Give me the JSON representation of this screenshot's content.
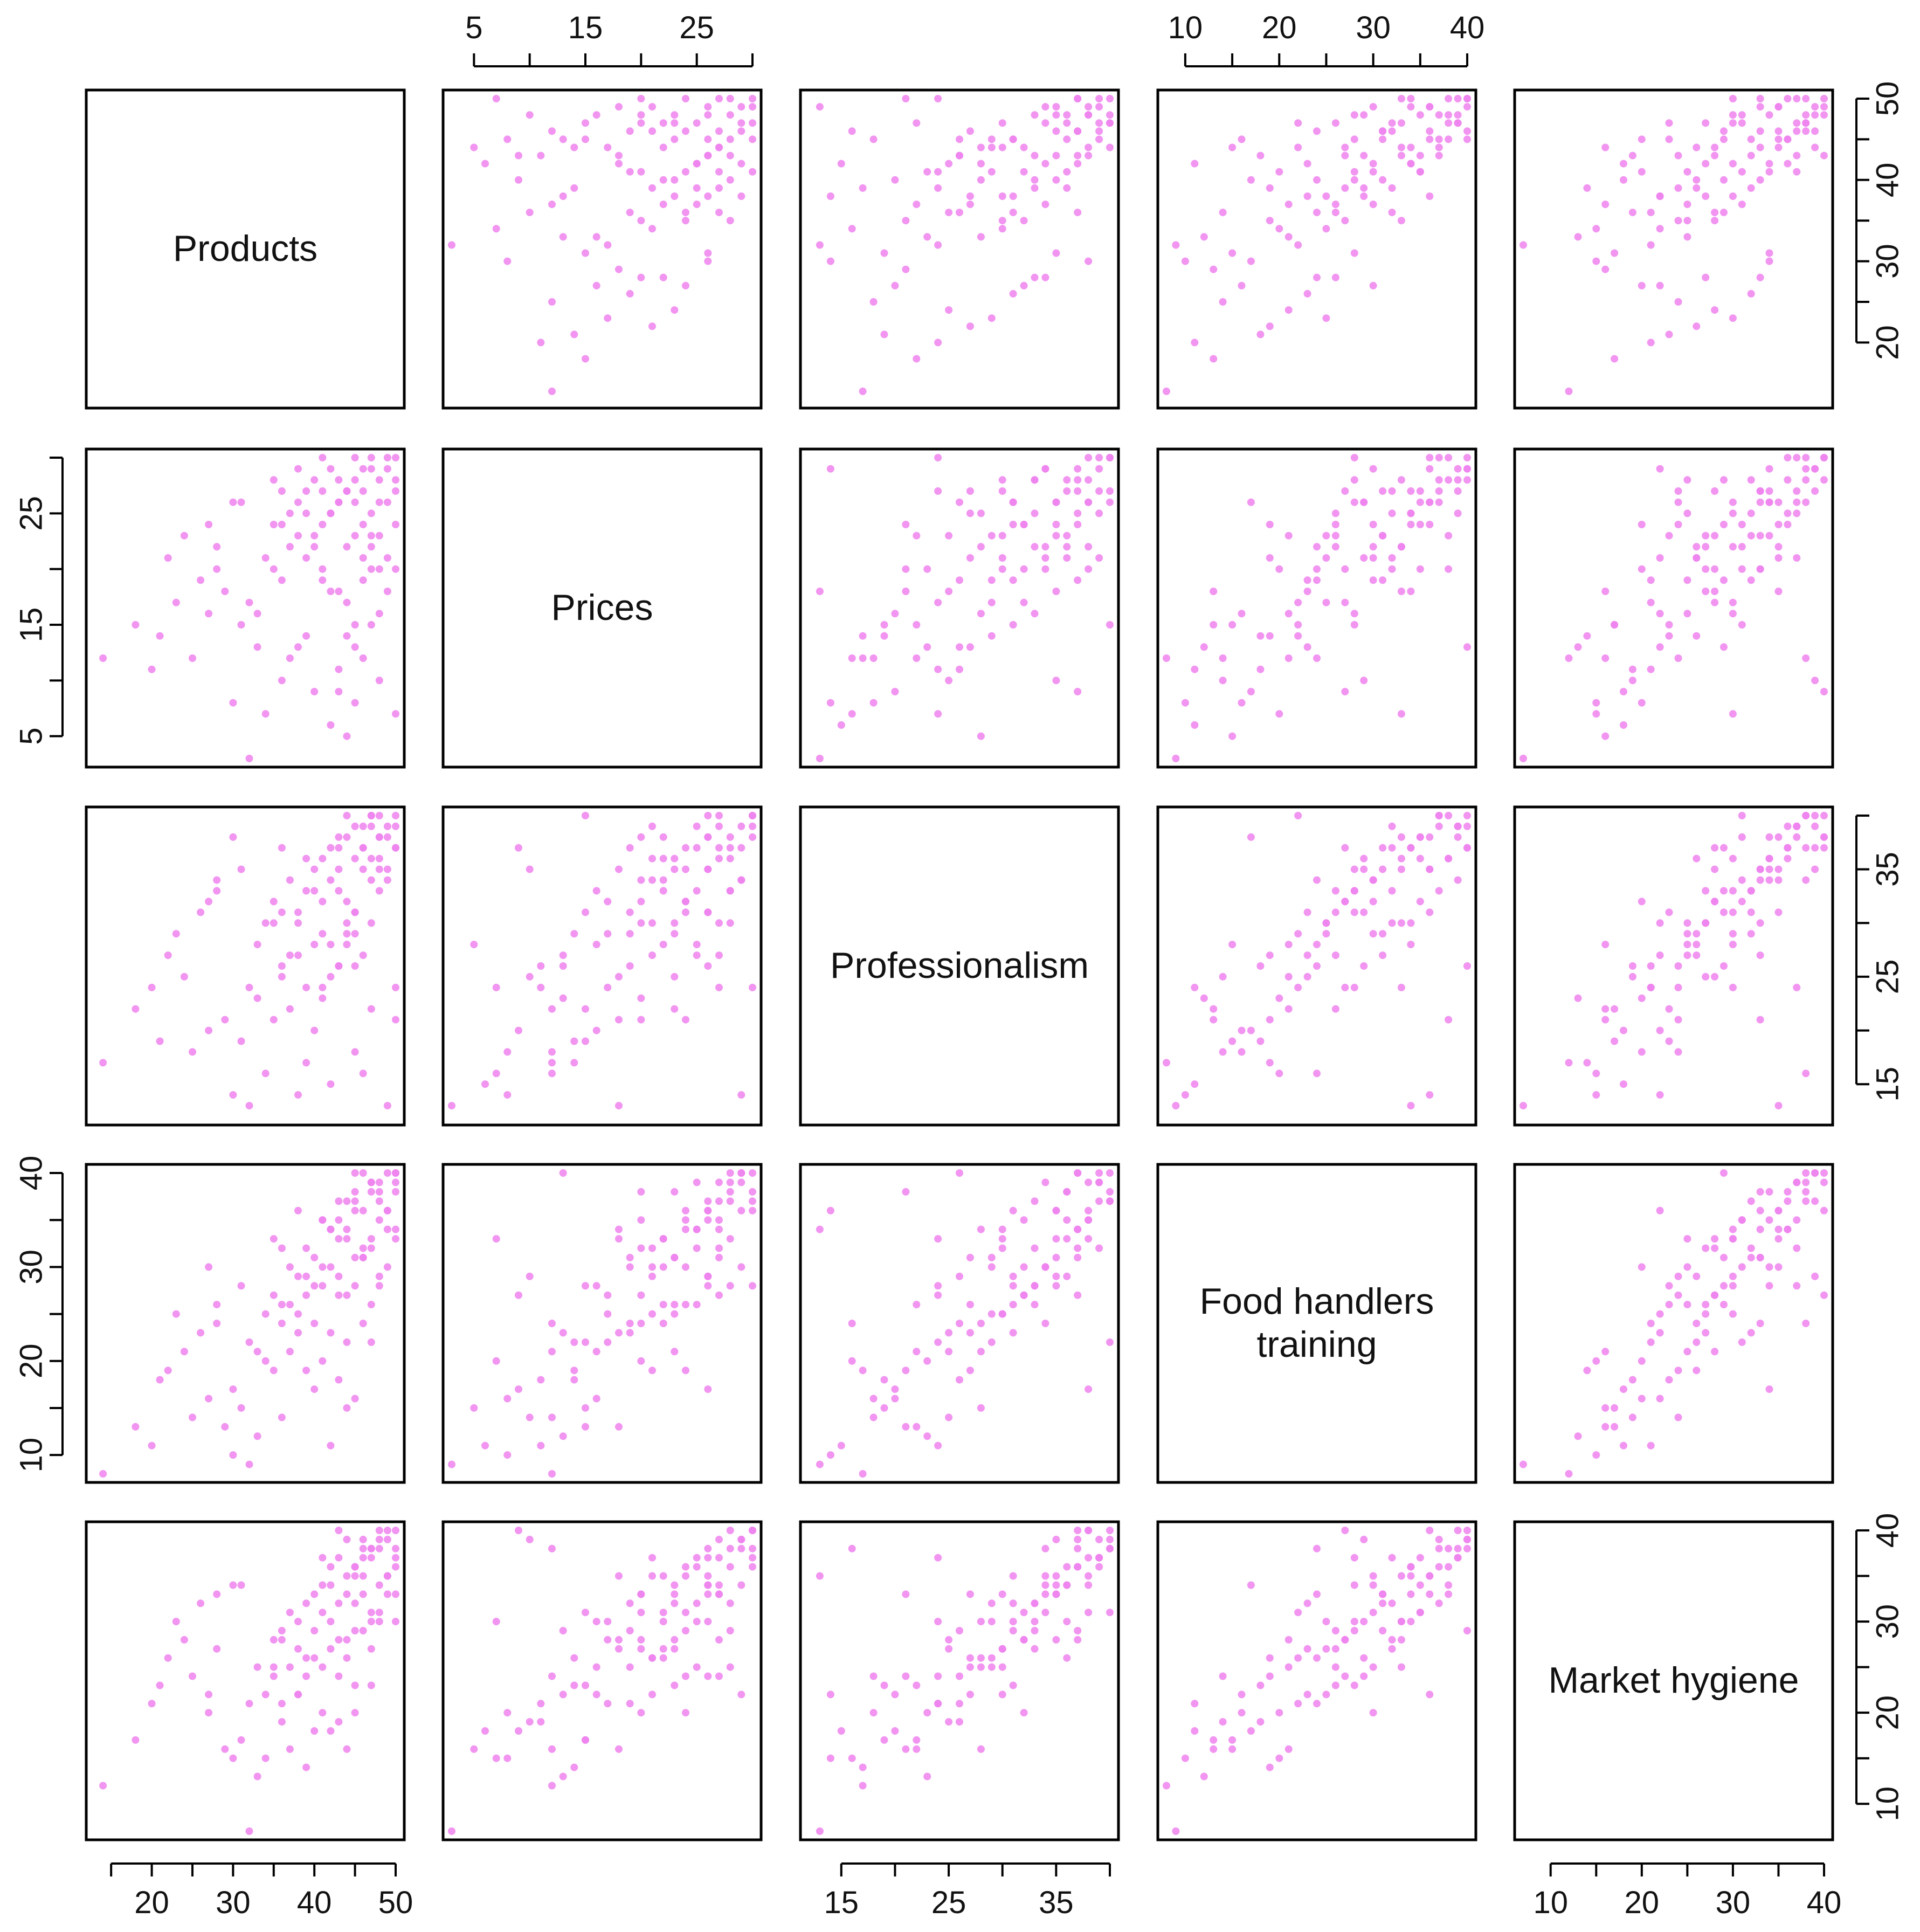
{
  "chart_data": {
    "type": "scatter",
    "subtype": "scatterplot-matrix",
    "point_color": "#ee82ee",
    "variables": [
      {
        "key": "products",
        "label": [
          "Products"
        ],
        "range": [
          13,
          50
        ]
      },
      {
        "key": "prices",
        "label": [
          "Prices"
        ],
        "range": [
          3,
          30
        ]
      },
      {
        "key": "professionalism",
        "label": [
          "Professionalism"
        ],
        "range": [
          12,
          40
        ]
      },
      {
        "key": "food_handlers_training",
        "label": [
          "Food handlers",
          "training"
        ],
        "range": [
          8,
          40
        ]
      },
      {
        "key": "market_hygiene",
        "label": [
          "Market hygiene"
        ],
        "range": [
          7,
          40
        ]
      }
    ],
    "axes": {
      "top": [
        {
          "column": 1,
          "ticks": [
            5,
            10,
            15,
            20,
            25,
            30
          ],
          "labels": [
            "5",
            "15",
            "25"
          ]
        },
        {
          "column": 3,
          "ticks": [
            10,
            15,
            20,
            25,
            30,
            35,
            40
          ],
          "labels": [
            "10",
            "20",
            "30",
            "40"
          ]
        }
      ],
      "bottom": [
        {
          "column": 0,
          "ticks": [
            15,
            20,
            25,
            30,
            35,
            40,
            45,
            50
          ],
          "labels": [
            "20",
            "30",
            "40",
            "50"
          ]
        },
        {
          "column": 2,
          "ticks": [
            15,
            20,
            25,
            30,
            35,
            40
          ],
          "labels": [
            "15",
            "25",
            "35"
          ]
        },
        {
          "column": 4,
          "ticks": [
            10,
            15,
            20,
            25,
            30,
            35,
            40
          ],
          "labels": [
            "10",
            "20",
            "30",
            "40"
          ]
        }
      ],
      "left": [
        {
          "row": 1,
          "ticks": [
            5,
            10,
            15,
            20,
            25,
            30
          ],
          "labels": [
            "5",
            "15",
            "25"
          ]
        },
        {
          "row": 3,
          "ticks": [
            10,
            15,
            20,
            25,
            30,
            35,
            40
          ],
          "labels": [
            "10",
            "20",
            "30",
            "40"
          ]
        }
      ],
      "right": [
        {
          "row": 0,
          "ticks": [
            20,
            25,
            30,
            35,
            40,
            45,
            50
          ],
          "labels": [
            "20",
            "30",
            "40",
            "50"
          ]
        },
        {
          "row": 2,
          "ticks": [
            15,
            20,
            25,
            30,
            35,
            40
          ],
          "labels": [
            "15",
            "25",
            "35"
          ]
        },
        {
          "row": 4,
          "ticks": [
            10,
            15,
            20,
            25,
            30,
            35,
            40
          ],
          "labels": [
            "10",
            "20",
            "30",
            "40"
          ]
        }
      ]
    },
    "sample_data": {
      "note": "approximate respondent scores read off the panels",
      "fields": [
        "products",
        "prices",
        "professionalism",
        "food_handlers_training",
        "market_hygiene"
      ],
      "records": [
        [
          50,
          30,
          40,
          40,
          40
        ],
        [
          49,
          29,
          39,
          40,
          39
        ],
        [
          48,
          28,
          38,
          39,
          40
        ],
        [
          47,
          30,
          40,
          38,
          38
        ],
        [
          50,
          27,
          39,
          39,
          37
        ],
        [
          46,
          29,
          37,
          40,
          39
        ],
        [
          48,
          26,
          40,
          37,
          38
        ],
        [
          45,
          28,
          36,
          38,
          36
        ],
        [
          49,
          30,
          38,
          36,
          40
        ],
        [
          47,
          25,
          39,
          39,
          37
        ],
        [
          44,
          27,
          40,
          37,
          39
        ],
        [
          46,
          24,
          35,
          36,
          35
        ],
        [
          50,
          28,
          37,
          40,
          38
        ],
        [
          43,
          26,
          38,
          35,
          37
        ],
        [
          45,
          30,
          39,
          37,
          36
        ],
        [
          48,
          23,
          36,
          38,
          34
        ],
        [
          42,
          25,
          37,
          34,
          36
        ],
        [
          47,
          29,
          34,
          39,
          38
        ],
        [
          44,
          22,
          38,
          33,
          35
        ],
        [
          49,
          26,
          35,
          36,
          33
        ],
        [
          41,
          27,
          36,
          35,
          34
        ],
        [
          46,
          21,
          39,
          32,
          37
        ],
        [
          43,
          28,
          33,
          37,
          32
        ],
        [
          50,
          24,
          37,
          34,
          36
        ],
        [
          40,
          23,
          35,
          31,
          33
        ],
        [
          45,
          26,
          31,
          36,
          35
        ],
        [
          48,
          20,
          38,
          35,
          31
        ],
        [
          42,
          29,
          34,
          30,
          34
        ],
        [
          47,
          22,
          36,
          33,
          30
        ],
        [
          39,
          25,
          33,
          32,
          32
        ],
        [
          44,
          27,
          30,
          34,
          33
        ],
        [
          46,
          19,
          37,
          31,
          29
        ],
        [
          41,
          24,
          32,
          35,
          31
        ],
        [
          49,
          21,
          34,
          30,
          35
        ],
        [
          38,
          26,
          31,
          29,
          30
        ],
        [
          43,
          18,
          35,
          33,
          28
        ],
        [
          45,
          23,
          29,
          31,
          32
        ],
        [
          40,
          28,
          33,
          28,
          29
        ],
        [
          47,
          20,
          30,
          32,
          27
        ],
        [
          37,
          22,
          34,
          30,
          31
        ],
        [
          42,
          25,
          28,
          34,
          30
        ],
        [
          44,
          17,
          32,
          27,
          28
        ],
        [
          39,
          21,
          36,
          29,
          26
        ],
        [
          46,
          27,
          27,
          31,
          33
        ],
        [
          36,
          24,
          31,
          26,
          29
        ],
        [
          41,
          19,
          29,
          30,
          25
        ],
        [
          48,
          16,
          33,
          28,
          30
        ],
        [
          38,
          23,
          30,
          25,
          27
        ],
        [
          43,
          26,
          26,
          29,
          24
        ],
        [
          35,
          20,
          32,
          27,
          28
        ],
        [
          40,
          22,
          28,
          24,
          26
        ],
        [
          45,
          15,
          31,
          28,
          23
        ],
        [
          37,
          25,
          27,
          26,
          25
        ],
        [
          42,
          18,
          25,
          23,
          27
        ],
        [
          34,
          21,
          30,
          25,
          22
        ],
        [
          39,
          27,
          24,
          27,
          24
        ],
        [
          44,
          14,
          29,
          22,
          26
        ],
        [
          36,
          19,
          26,
          24,
          21
        ],
        [
          47,
          23,
          22,
          26,
          23
        ],
        [
          33,
          16,
          28,
          21,
          25
        ],
        [
          41,
          20,
          23,
          20,
          20
        ],
        [
          38,
          13,
          27,
          23,
          22
        ],
        [
          35,
          24,
          21,
          19,
          24
        ],
        [
          43,
          11,
          26,
          18,
          19
        ],
        [
          32,
          17,
          24,
          22,
          21
        ],
        [
          40,
          9,
          20,
          17,
          18
        ],
        [
          37,
          12,
          22,
          21,
          16
        ],
        [
          45,
          8,
          18,
          16,
          20
        ],
        [
          31,
          15,
          19,
          15,
          17
        ],
        [
          34,
          7,
          16,
          20,
          15
        ],
        [
          36,
          10,
          25,
          14,
          19
        ],
        [
          39,
          14,
          17,
          19,
          14
        ],
        [
          29,
          18,
          21,
          13,
          16
        ],
        [
          42,
          6,
          15,
          11,
          18
        ],
        [
          33,
          13,
          23,
          12,
          13
        ],
        [
          27,
          16,
          20,
          16,
          22
        ],
        [
          30,
          8,
          14,
          10,
          15
        ],
        [
          25,
          12,
          18,
          14,
          24
        ],
        [
          22,
          21,
          27,
          19,
          26
        ],
        [
          20,
          11,
          24,
          11,
          21
        ],
        [
          23,
          17,
          29,
          25,
          30
        ],
        [
          18,
          15,
          22,
          13,
          17
        ],
        [
          14,
          12,
          17,
          8,
          12
        ],
        [
          24,
          23,
          25,
          21,
          28
        ],
        [
          26,
          19,
          31,
          23,
          32
        ],
        [
          28,
          22,
          33,
          26,
          27
        ],
        [
          31,
          26,
          35,
          28,
          34
        ],
        [
          35,
          28,
          30,
          33,
          25
        ],
        [
          21,
          14,
          19,
          18,
          23
        ],
        [
          48,
          10,
          35,
          29,
          39
        ],
        [
          50,
          7,
          24,
          33,
          30
        ],
        [
          46,
          12,
          16,
          24,
          38
        ],
        [
          44,
          5,
          28,
          15,
          16
        ],
        [
          49,
          18,
          13,
          34,
          35
        ],
        [
          47,
          15,
          40,
          22,
          31
        ],
        [
          32,
          3,
          13,
          9,
          7
        ],
        [
          50,
          20,
          21,
          38,
          33
        ],
        [
          43,
          9,
          37,
          27,
          40
        ],
        [
          38,
          29,
          14,
          36,
          22
        ],
        [
          45,
          13,
          26,
          40,
          29
        ],
        [
          30,
          26,
          38,
          17,
          34
        ],
        [
          27,
          24,
          32,
          30,
          20
        ],
        [
          41,
          30,
          24,
          28,
          37
        ],
        [
          36,
          27,
          37,
          32,
          28
        ],
        [
          28,
          20,
          34,
          24,
          33
        ]
      ]
    }
  }
}
